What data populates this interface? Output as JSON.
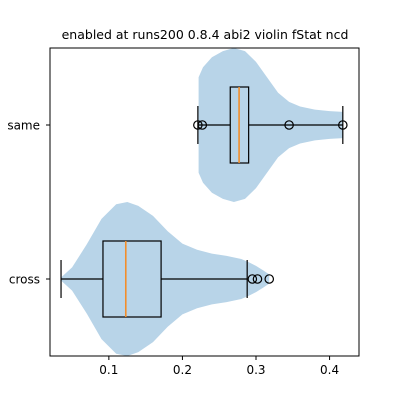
{
  "chart_data": {
    "type": "violin",
    "title": "enabled at runs200 0.8.4 abi2 violin fStat ncd",
    "xlabel": "",
    "ylabel": "",
    "xlim": [
      0.02,
      0.44
    ],
    "xticks": [
      0.1,
      0.2,
      0.3,
      0.4
    ],
    "xtick_labels": [
      "0.1",
      "0.2",
      "0.3",
      "0.4"
    ],
    "categories": [
      "cross",
      "same"
    ],
    "violins": [
      {
        "category": "cross",
        "density_profile": [
          [
            0.035,
            0.02
          ],
          [
            0.05,
            0.15
          ],
          [
            0.07,
            0.45
          ],
          [
            0.09,
            0.78
          ],
          [
            0.11,
            0.97
          ],
          [
            0.125,
            1.0
          ],
          [
            0.14,
            0.95
          ],
          [
            0.16,
            0.82
          ],
          [
            0.18,
            0.62
          ],
          [
            0.2,
            0.46
          ],
          [
            0.22,
            0.38
          ],
          [
            0.24,
            0.33
          ],
          [
            0.26,
            0.3
          ],
          [
            0.28,
            0.26
          ],
          [
            0.29,
            0.22
          ],
          [
            0.3,
            0.17
          ],
          [
            0.31,
            0.11
          ],
          [
            0.318,
            0.06
          ]
        ],
        "box": {
          "whisker_low": 0.035,
          "q1": 0.092,
          "median": 0.123,
          "q3": 0.171,
          "whisker_high": 0.288
        },
        "fliers": [
          0.295,
          0.302,
          0.318
        ]
      },
      {
        "category": "same",
        "density_profile": [
          [
            0.222,
            0.62
          ],
          [
            0.228,
            0.75
          ],
          [
            0.24,
            0.88
          ],
          [
            0.255,
            0.96
          ],
          [
            0.27,
            1.0
          ],
          [
            0.285,
            0.96
          ],
          [
            0.3,
            0.82
          ],
          [
            0.315,
            0.62
          ],
          [
            0.33,
            0.42
          ],
          [
            0.345,
            0.3
          ],
          [
            0.36,
            0.24
          ],
          [
            0.38,
            0.2
          ],
          [
            0.4,
            0.18
          ],
          [
            0.418,
            0.17
          ]
        ],
        "box": {
          "whisker_low": 0.221,
          "q1": 0.265,
          "median": 0.277,
          "q3": 0.29,
          "whisker_high": 0.418
        },
        "fliers": [
          0.221,
          0.227,
          0.345,
          0.418
        ]
      }
    ],
    "colors": {
      "violin": "#b8d4e8",
      "median": "#f28e2b",
      "box": "#000000"
    },
    "grid": false,
    "legend": "none"
  }
}
